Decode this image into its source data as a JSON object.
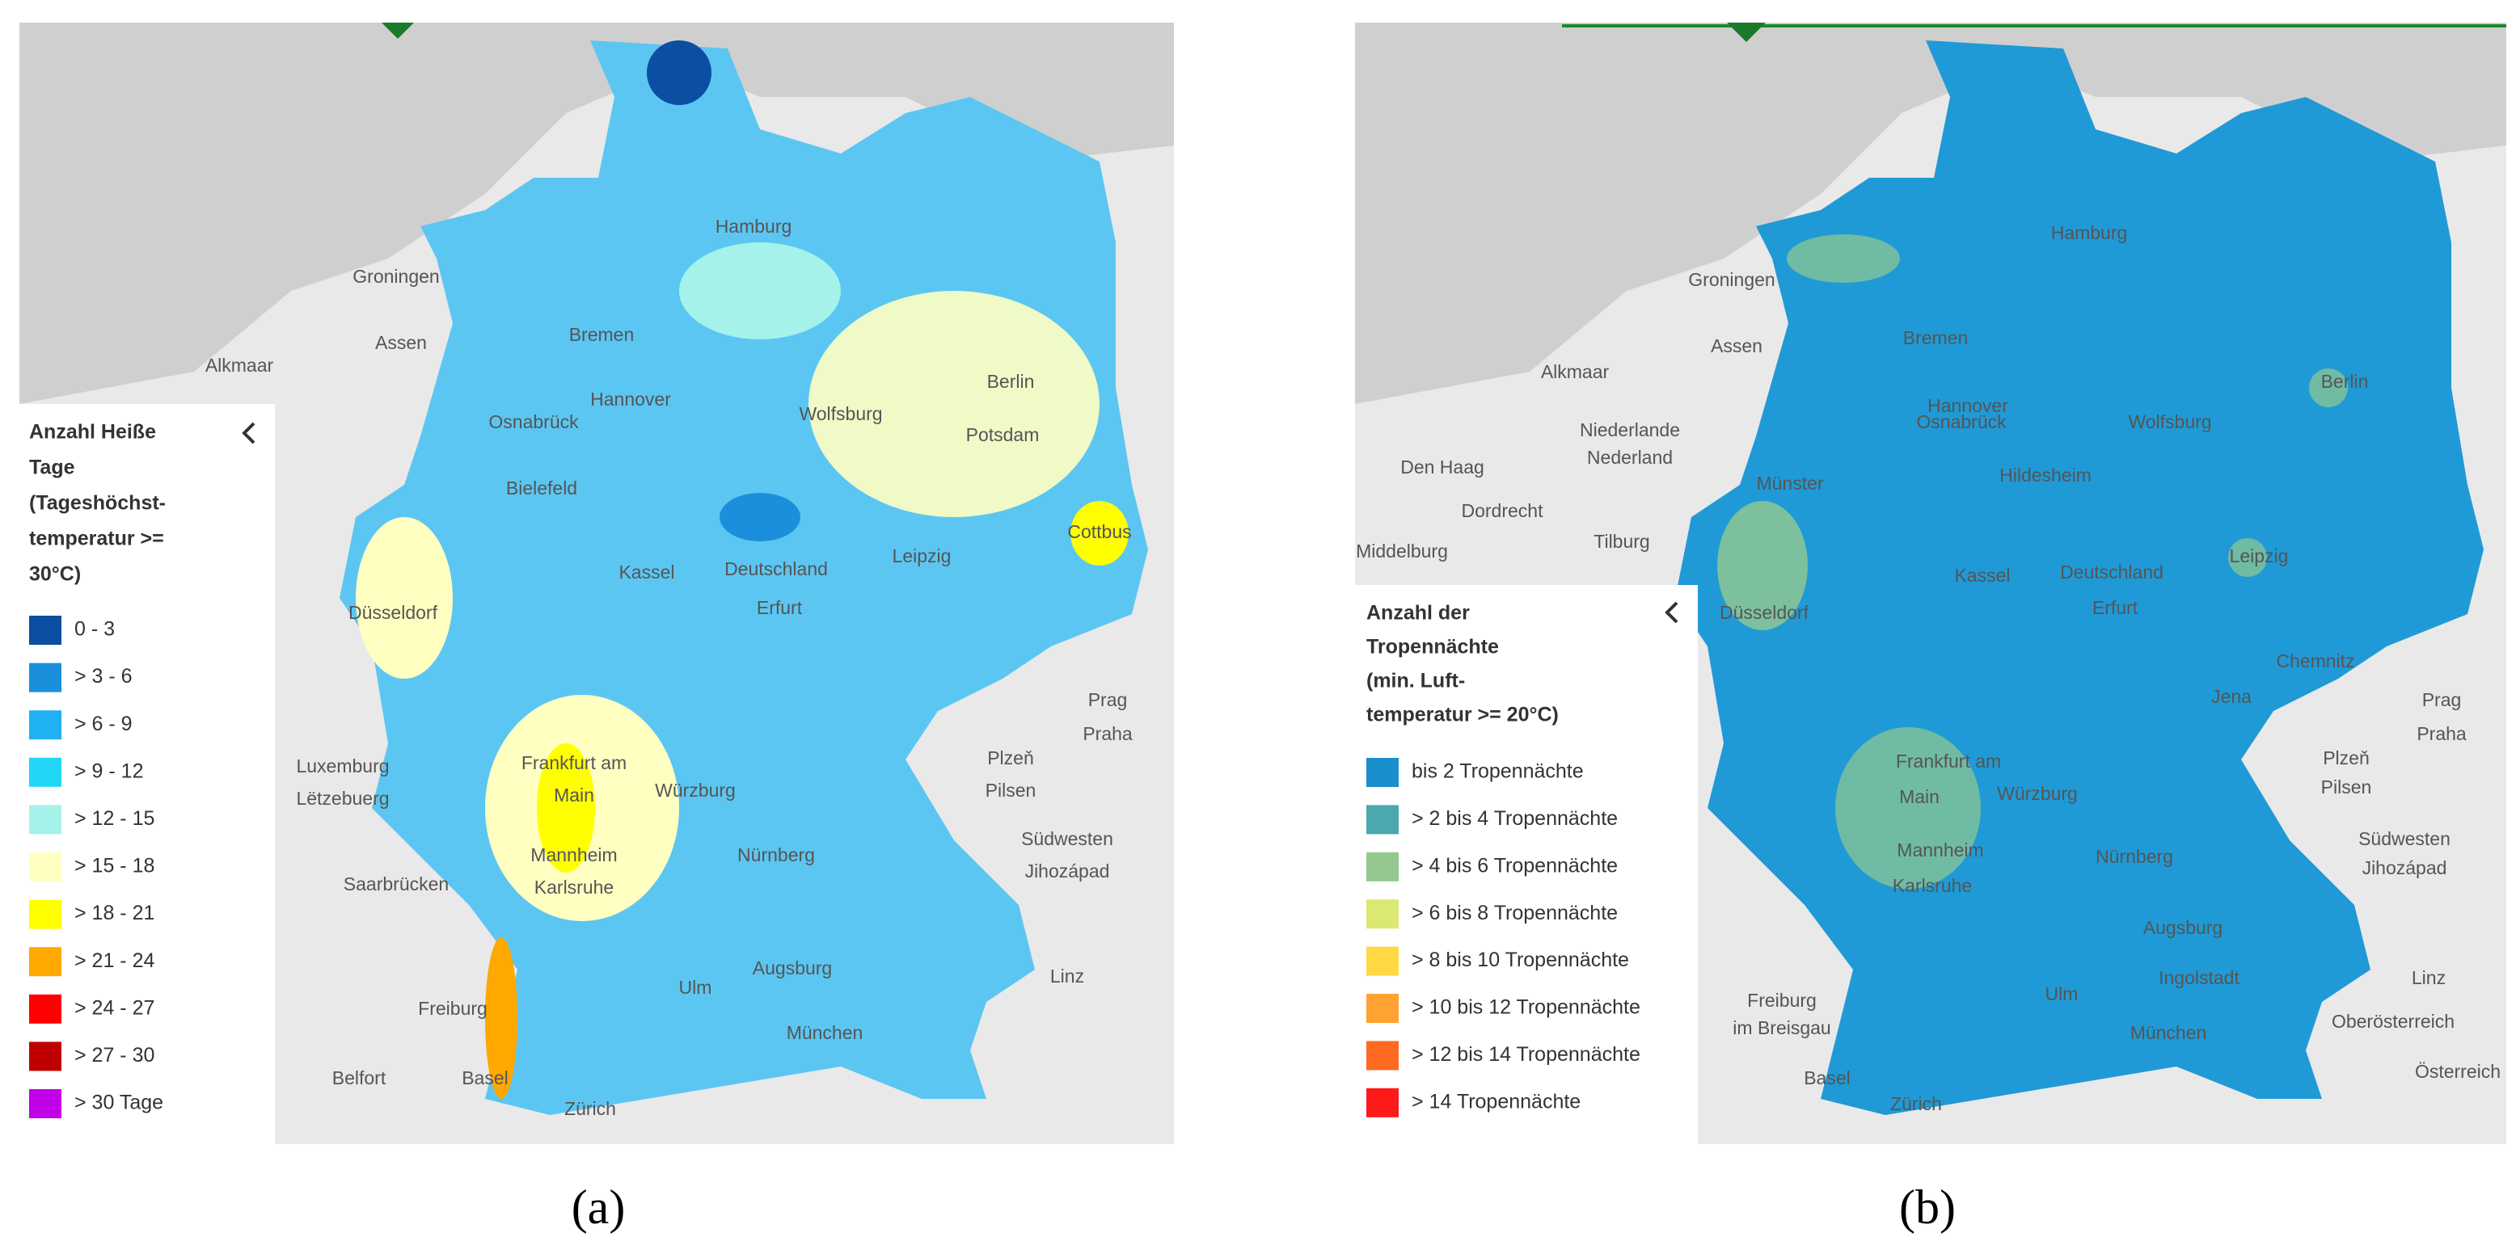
{
  "panels": [
    {
      "caption": "(a)",
      "legend": {
        "title_lines": [
          "Anzahl Heiße",
          "Tage",
          "(Tageshöchst-",
          "temperatur >=",
          "30°C)"
        ],
        "items": [
          {
            "label": "0 - 3",
            "color": "#0b4ea2"
          },
          {
            "label": "> 3 - 6",
            "color": "#1b8fdc"
          },
          {
            "label": "> 6 - 9",
            "color": "#1fb1f2"
          },
          {
            "label": "> 9 - 12",
            "color": "#22d6f6"
          },
          {
            "label": "> 12 - 15",
            "color": "#a4f2ea"
          },
          {
            "label": "> 15 - 18",
            "color": "#ffffc2"
          },
          {
            "label": "> 18 - 21",
            "color": "#ffff00"
          },
          {
            "label": "> 21 - 24",
            "color": "#ffa800"
          },
          {
            "label": "> 24 - 27",
            "color": "#ff0000"
          },
          {
            "label": "> 27 - 30",
            "color": "#c00000"
          },
          {
            "label": "> 30 Tage",
            "color": "#c000e6"
          }
        ]
      },
      "places": [
        "Groningen",
        "Assen",
        "Alkmaar",
        "Bremen",
        "Hamburg",
        "Hannover",
        "Berlin",
        "Potsdam",
        "Osnabrück",
        "Wolfsburg",
        "Bielefeld",
        "Kassel",
        "Deutschland",
        "Leipzig",
        "Erfurt",
        "Düsseldorf",
        "Frankfurt am",
        "Main",
        "Würzburg",
        "Nürnberg",
        "Mannheim",
        "Karlsruhe",
        "Saarbrücken",
        "Augsburg",
        "Ulm",
        "München",
        "Freiburg",
        "Basel",
        "Zürich",
        "Belfort",
        "Prag",
        "Praha",
        "Plzeň",
        "Pilsen",
        "Linz",
        "Cottbus",
        "Luxemburg",
        "Lëtzebuerg",
        "Südwesten",
        "Jihozápad"
      ]
    },
    {
      "caption": "(b)",
      "legend": {
        "title_lines": [
          "Anzahl der",
          "Tropennächte",
          "(min. Luft-",
          "temperatur >= 20°C)"
        ],
        "items": [
          {
            "label": "bis 2 Tropennächte",
            "color": "#1b8fcb"
          },
          {
            "label": "> 2 bis 4 Tropennächte",
            "color": "#4aa8ae"
          },
          {
            "label": "> 4 bis 6 Tropennächte",
            "color": "#93c98f"
          },
          {
            "label": "> 6 bis 8 Tropennächte",
            "color": "#dbe872"
          },
          {
            "label": "> 8 bis 10 Tropennächte",
            "color": "#ffd944"
          },
          {
            "label": "> 10 bis 12 Tropennächte",
            "color": "#ffa232"
          },
          {
            "label": "> 12 bis 14 Tropennächte",
            "color": "#ff6a20"
          },
          {
            "label": "> 14 Tropennächte",
            "color": "#ff1a1a"
          }
        ]
      },
      "places": [
        "Groningen",
        "Assen",
        "Alkmaar",
        "Den Haag",
        "Niederlande",
        "Nederland",
        "Dordrecht",
        "Middelburg",
        "Tilburg",
        "Bremen",
        "Hamburg",
        "Hannover",
        "Berlin",
        "Osnabrück",
        "Wolfsburg",
        "Hildesheim",
        "Münster",
        "Kassel",
        "Deutschland",
        "Leipzig",
        "Erfurt",
        "Jena",
        "Chemnitz",
        "Düsseldorf",
        "Frankfurt am",
        "Main",
        "Würzburg",
        "Nürnberg",
        "Mannheim",
        "Karlsruhe",
        "Ingolstadt",
        "Augsburg",
        "Ulm",
        "München",
        "Freiburg",
        "im Breisgau",
        "Basel",
        "Zürich",
        "Prag",
        "Praha",
        "Plzeň",
        "Pilsen",
        "Linz",
        "Oberösterreich",
        "Österreich",
        "Südwesten",
        "Jihozápad"
      ]
    }
  ]
}
